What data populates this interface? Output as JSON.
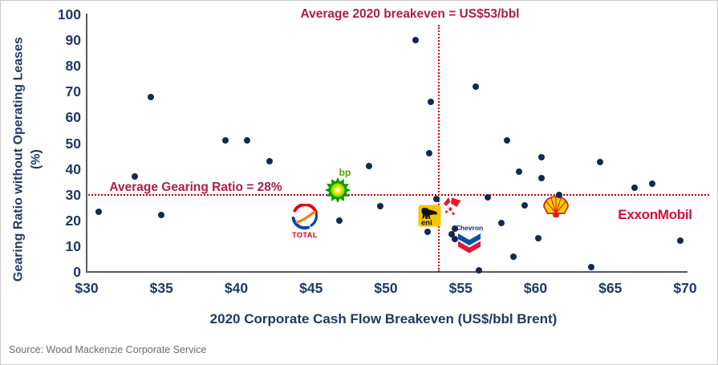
{
  "source": "Source: Wood Mackenzie Corporate Service",
  "colors": {
    "dot": "#14294e",
    "axis_text": "#1f3864",
    "annotation_red": "#a8204a",
    "dashed_line_red": "#c00000",
    "axis_line_gray": "#595959",
    "source_gray": "#6d6d6d",
    "exxon_red": "#d0103a"
  },
  "chart_data": {
    "type": "scatter",
    "title": "",
    "xlabel": "2020 Corporate Cash Flow Breakeven (US$/bbl Brent)",
    "ylabel": "Gearing Ratio without Operating Leases",
    "ylabel_unit": "(%)",
    "xlim": [
      30,
      70
    ],
    "ylim": [
      0,
      100
    ],
    "grid": false,
    "x_ticks": [
      {
        "v": 30,
        "label": "$30"
      },
      {
        "v": 35,
        "label": "$35"
      },
      {
        "v": 40,
        "label": "$40"
      },
      {
        "v": 45,
        "label": "$45"
      },
      {
        "v": 50,
        "label": "$50"
      },
      {
        "v": 55,
        "label": "$55"
      },
      {
        "v": 60,
        "label": "$60"
      },
      {
        "v": 65,
        "label": "$65"
      },
      {
        "v": 70,
        "label": "$70"
      }
    ],
    "y_ticks": [
      {
        "v": 0,
        "label": "0"
      },
      {
        "v": 10,
        "label": "10"
      },
      {
        "v": 20,
        "label": "20"
      },
      {
        "v": 30,
        "label": "30"
      },
      {
        "v": 40,
        "label": "40"
      },
      {
        "v": 50,
        "label": "50"
      },
      {
        "v": 60,
        "label": "60"
      },
      {
        "v": 70,
        "label": "70"
      },
      {
        "v": 80,
        "label": "80"
      },
      {
        "v": 90,
        "label": "90"
      },
      {
        "v": 100,
        "label": "100"
      }
    ],
    "points": [
      [
        30.8,
        23.5
      ],
      [
        33.2,
        37
      ],
      [
        34.3,
        68
      ],
      [
        35.0,
        22
      ],
      [
        39.3,
        51
      ],
      [
        40.7,
        51
      ],
      [
        42.2,
        43
      ],
      [
        46.9,
        20
      ],
      [
        48.9,
        41
      ],
      [
        49.6,
        25.5
      ],
      [
        52.0,
        90
      ],
      [
        52.8,
        15.5
      ],
      [
        52.9,
        46
      ],
      [
        53.0,
        66
      ],
      [
        53.4,
        28.5
      ],
      [
        54.4,
        14.5
      ],
      [
        54.6,
        16.7
      ],
      [
        54.6,
        12.8
      ],
      [
        56.0,
        72
      ],
      [
        56.2,
        0.5
      ],
      [
        56.8,
        29
      ],
      [
        57.7,
        19
      ],
      [
        58.1,
        51
      ],
      [
        58.5,
        6
      ],
      [
        58.9,
        39
      ],
      [
        59.3,
        26
      ],
      [
        60.2,
        13
      ],
      [
        60.4,
        44.5
      ],
      [
        60.4,
        36.5
      ],
      [
        61.6,
        30
      ],
      [
        63.7,
        2
      ],
      [
        64.3,
        42.7
      ],
      [
        66.6,
        32.6
      ],
      [
        67.8,
        34.4
      ],
      [
        69.7,
        12
      ]
    ],
    "annotations": {
      "vline": {
        "label": "Average 2020 breakeven = US$53/bbl",
        "value": 53,
        "x": 53.55
      },
      "hline": {
        "label": "Average Gearing Ratio = 28%",
        "value": 28,
        "y": 30
      }
    },
    "companies": [
      {
        "id": "bp",
        "name": "bp",
        "x": 46.85,
        "y": 33.6
      },
      {
        "id": "total",
        "name": "TOTAL",
        "x": 44.6,
        "y": 19.6
      },
      {
        "id": "eni",
        "name": "eni",
        "x": 52.93,
        "y": 21.8
      },
      {
        "id": "conocophillips",
        "name": "ConocoPhillips",
        "x": 54.43,
        "y": 25.2
      },
      {
        "id": "chevron",
        "name": "Chevron",
        "x": 55.58,
        "y": 12.9
      },
      {
        "id": "shell",
        "name": "Shell",
        "x": 61.37,
        "y": 25.1
      },
      {
        "id": "exxonmobil",
        "name": "ExxonMobil",
        "x": 68.3,
        "y": 22.0
      }
    ]
  }
}
